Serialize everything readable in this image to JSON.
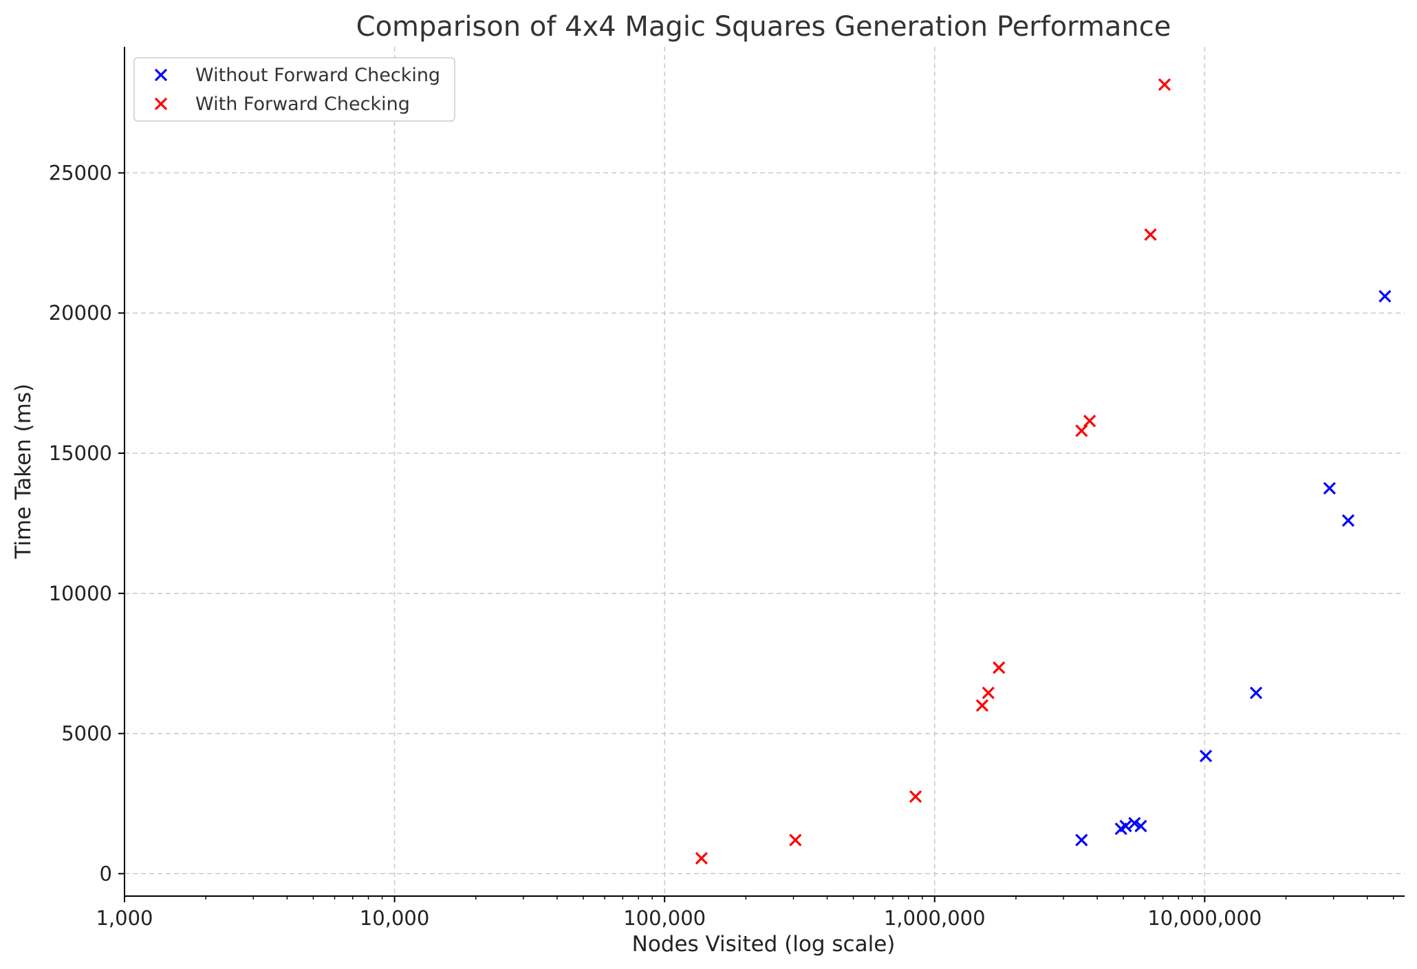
{
  "chart_data": {
    "type": "scatter",
    "title": "Comparison of 4x4 Magic Squares Generation Performance",
    "xlabel": "Nodes Visited (log scale)",
    "ylabel": "Time Taken (ms)",
    "xscale": "log",
    "xlim": [
      1000,
      55000000
    ],
    "ylim": [
      -800,
      29500
    ],
    "x_ticks": [
      {
        "value": 1000,
        "label": "1,000"
      },
      {
        "value": 10000,
        "label": "10,000"
      },
      {
        "value": 100000,
        "label": "100,000"
      },
      {
        "value": 1000000,
        "label": "1,000,000"
      },
      {
        "value": 10000000,
        "label": "10,000,000"
      }
    ],
    "y_ticks": [
      {
        "value": 0,
        "label": "0"
      },
      {
        "value": 5000,
        "label": "5000"
      },
      {
        "value": 10000,
        "label": "10000"
      },
      {
        "value": 15000,
        "label": "15000"
      },
      {
        "value": 20000,
        "label": "20000"
      },
      {
        "value": 25000,
        "label": "25000"
      }
    ],
    "grid": true,
    "legend_position": "top-left",
    "marker": "x",
    "series": [
      {
        "name": "Without Forward Checking",
        "color": "#0000ff",
        "points": [
          {
            "x": 3500000,
            "y": 1200
          },
          {
            "x": 4900000,
            "y": 1600
          },
          {
            "x": 5100000,
            "y": 1700
          },
          {
            "x": 5500000,
            "y": 1800
          },
          {
            "x": 5800000,
            "y": 1700
          },
          {
            "x": 10100000,
            "y": 4200
          },
          {
            "x": 15500000,
            "y": 6450
          },
          {
            "x": 29000000,
            "y": 13750
          },
          {
            "x": 34000000,
            "y": 12600
          },
          {
            "x": 46500000,
            "y": 20600
          }
        ]
      },
      {
        "name": "With Forward Checking",
        "color": "#ff0000",
        "points": [
          {
            "x": 137000,
            "y": 550
          },
          {
            "x": 305000,
            "y": 1200
          },
          {
            "x": 850000,
            "y": 2750
          },
          {
            "x": 1500000,
            "y": 6000
          },
          {
            "x": 1580000,
            "y": 6450
          },
          {
            "x": 1730000,
            "y": 7350
          },
          {
            "x": 3500000,
            "y": 15800
          },
          {
            "x": 3750000,
            "y": 16150
          },
          {
            "x": 6300000,
            "y": 22800
          },
          {
            "x": 7100000,
            "y": 28150
          }
        ]
      }
    ]
  }
}
